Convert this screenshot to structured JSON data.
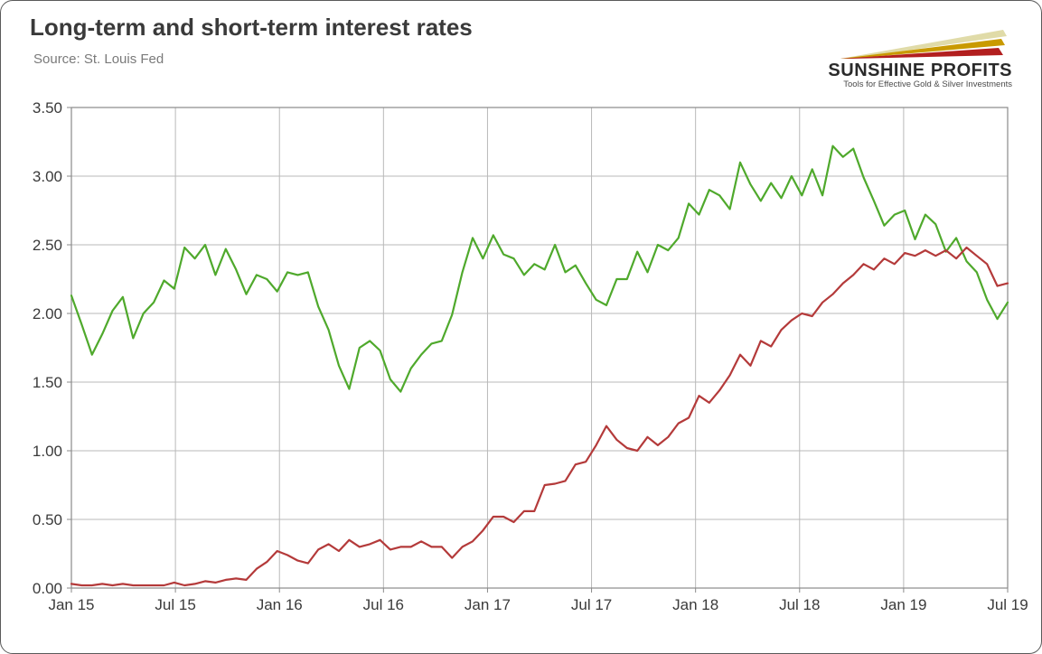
{
  "title": "Long-term and short-term interest rates",
  "subtitle": "Source: St. Louis Fed",
  "logo": {
    "main": "SUNSHINE PROFITS",
    "sub": "Tools for Effective Gold & Silver Investments",
    "ray_colors": [
      "#b21f1f",
      "#c99a00",
      "#e0dba8"
    ]
  },
  "chart": {
    "type": "line",
    "background_color": "#ffffff",
    "plot_bg": "#ffffff",
    "grid_color": "#b9b9b9",
    "border_color": "#8a8a8a",
    "ylim": [
      0.0,
      3.5
    ],
    "ytick_step": 0.5,
    "ytick_format": "0.00",
    "ytick_fontsize": 17,
    "xtick_labels": [
      "Jan 15",
      "Jul 15",
      "Jan 16",
      "Jul 16",
      "Jan 17",
      "Jul 17",
      "Jan 18",
      "Jul 18",
      "Jan 19",
      "Jul 19"
    ],
    "xtick_positions": [
      0,
      6,
      12,
      18,
      24,
      30,
      36,
      42,
      48,
      54
    ],
    "xlim": [
      0,
      54
    ],
    "xtick_fontsize": 17,
    "line_width": 2.2,
    "series": [
      {
        "name": "long_term",
        "color": "#4fa92c",
        "data": [
          2.13,
          1.92,
          1.7,
          1.85,
          2.02,
          2.12,
          1.82,
          2.0,
          2.08,
          2.24,
          2.18,
          2.48,
          2.4,
          2.5,
          2.28,
          2.47,
          2.32,
          2.14,
          2.28,
          2.25,
          2.16,
          2.3,
          2.28,
          2.3,
          2.05,
          1.88,
          1.62,
          1.45,
          1.75,
          1.8,
          1.73,
          1.52,
          1.43,
          1.6,
          1.7,
          1.78,
          1.8,
          1.99,
          2.3,
          2.55,
          2.4,
          2.57,
          2.43,
          2.4,
          2.28,
          2.36,
          2.32,
          2.5,
          2.3,
          2.35,
          2.22,
          2.1,
          2.06,
          2.25,
          2.25,
          2.45,
          2.3,
          2.5,
          2.46,
          2.55,
          2.8,
          2.72,
          2.9,
          2.86,
          2.76,
          3.1,
          2.94,
          2.82,
          2.95,
          2.84,
          3.0,
          2.86,
          3.05,
          2.86,
          3.22,
          3.14,
          3.2,
          2.99,
          2.82,
          2.64,
          2.72,
          2.75,
          2.54,
          2.72,
          2.65,
          2.45,
          2.55,
          2.38,
          2.3,
          2.1,
          1.96,
          2.08
        ]
      },
      {
        "name": "short_term",
        "color": "#b43a3a",
        "data": [
          0.03,
          0.02,
          0.02,
          0.03,
          0.02,
          0.03,
          0.02,
          0.02,
          0.02,
          0.02,
          0.04,
          0.02,
          0.03,
          0.05,
          0.04,
          0.06,
          0.07,
          0.06,
          0.14,
          0.19,
          0.27,
          0.24,
          0.2,
          0.18,
          0.28,
          0.32,
          0.27,
          0.35,
          0.3,
          0.32,
          0.35,
          0.28,
          0.3,
          0.3,
          0.34,
          0.3,
          0.3,
          0.22,
          0.3,
          0.34,
          0.42,
          0.52,
          0.52,
          0.48,
          0.56,
          0.56,
          0.75,
          0.76,
          0.78,
          0.9,
          0.92,
          1.04,
          1.18,
          1.08,
          1.02,
          1.0,
          1.1,
          1.04,
          1.1,
          1.2,
          1.24,
          1.4,
          1.35,
          1.44,
          1.55,
          1.7,
          1.62,
          1.8,
          1.76,
          1.88,
          1.95,
          2.0,
          1.98,
          2.08,
          2.14,
          2.22,
          2.28,
          2.36,
          2.32,
          2.4,
          2.36,
          2.44,
          2.42,
          2.46,
          2.42,
          2.46,
          2.4,
          2.48,
          2.42,
          2.36,
          2.2,
          2.22
        ]
      }
    ]
  }
}
